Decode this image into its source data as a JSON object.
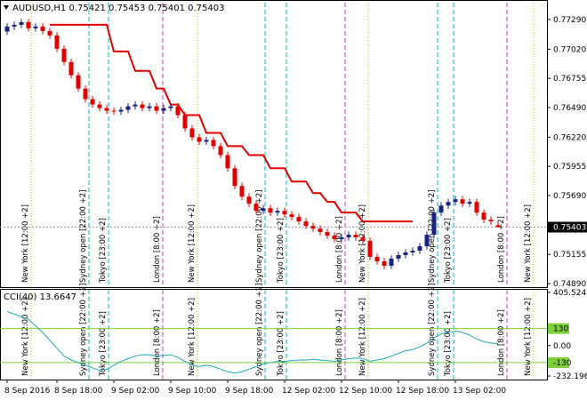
{
  "chart_data": {
    "type": "candlestick",
    "symbol": "AUDUSD,H1",
    "bull_color": "#1a237e",
    "bear_color": "#e00000",
    "ohlc": [
      [
        0.7718,
        0.77256,
        0.7715,
        0.77226
      ],
      [
        0.77226,
        0.77272,
        0.77196,
        0.77242
      ],
      [
        0.77242,
        0.77296,
        0.77212,
        0.77266
      ],
      [
        0.77266,
        0.77296,
        0.7718,
        0.7721
      ],
      [
        0.7721,
        0.77256,
        0.7718,
        0.77226
      ],
      [
        0.77226,
        0.77256,
        0.77155,
        0.77185
      ],
      [
        0.77185,
        0.77215,
        0.77115,
        0.77145
      ],
      [
        0.77145,
        0.77175,
        0.76994,
        0.77024
      ],
      [
        0.77024,
        0.77054,
        0.76874,
        0.76904
      ],
      [
        0.76904,
        0.76934,
        0.76753,
        0.76783
      ],
      [
        0.76783,
        0.76813,
        0.76632,
        0.76662
      ],
      [
        0.76662,
        0.76692,
        0.76536,
        0.76566
      ],
      [
        0.76566,
        0.76596,
        0.76487,
        0.76517
      ],
      [
        0.76517,
        0.76547,
        0.76455,
        0.76485
      ],
      [
        0.76485,
        0.76515,
        0.76431,
        0.76461
      ],
      [
        0.76461,
        0.76491,
        0.76423,
        0.76453
      ],
      [
        0.76453,
        0.76499,
        0.76423,
        0.76469
      ],
      [
        0.76469,
        0.76531,
        0.76439,
        0.76501
      ],
      [
        0.76501,
        0.76547,
        0.76471,
        0.76517
      ],
      [
        0.76517,
        0.76547,
        0.76455,
        0.76485
      ],
      [
        0.76485,
        0.76531,
        0.76455,
        0.76501
      ],
      [
        0.76501,
        0.76531,
        0.76431,
        0.76461
      ],
      [
        0.76461,
        0.76515,
        0.76431,
        0.76485
      ],
      [
        0.76485,
        0.76531,
        0.76455,
        0.76501
      ],
      [
        0.76501,
        0.76531,
        0.76391,
        0.76421
      ],
      [
        0.76421,
        0.76451,
        0.7627,
        0.763
      ],
      [
        0.763,
        0.7633,
        0.76189,
        0.76219
      ],
      [
        0.76219,
        0.76249,
        0.76149,
        0.76179
      ],
      [
        0.76179,
        0.76225,
        0.76149,
        0.76195
      ],
      [
        0.76195,
        0.76225,
        0.76109,
        0.76139
      ],
      [
        0.76139,
        0.76169,
        0.76028,
        0.76058
      ],
      [
        0.76058,
        0.76088,
        0.75908,
        0.75938
      ],
      [
        0.75938,
        0.75968,
        0.75747,
        0.75777
      ],
      [
        0.75777,
        0.75807,
        0.7565,
        0.7568
      ],
      [
        0.7568,
        0.7571,
        0.75586,
        0.75616
      ],
      [
        0.75616,
        0.75646,
        0.75521,
        0.75551
      ],
      [
        0.75551,
        0.75605,
        0.75521,
        0.75575
      ],
      [
        0.75575,
        0.75605,
        0.75505,
        0.75535
      ],
      [
        0.75535,
        0.75581,
        0.75505,
        0.75551
      ],
      [
        0.75551,
        0.75581,
        0.75489,
        0.75519
      ],
      [
        0.75519,
        0.75549,
        0.75465,
        0.75495
      ],
      [
        0.75495,
        0.75525,
        0.75425,
        0.75455
      ],
      [
        0.75455,
        0.75485,
        0.75384,
        0.75414
      ],
      [
        0.75414,
        0.75444,
        0.7536,
        0.7539
      ],
      [
        0.7539,
        0.7542,
        0.75328,
        0.75358
      ],
      [
        0.75358,
        0.75388,
        0.75296,
        0.75326
      ],
      [
        0.75326,
        0.75356,
        0.75264,
        0.75294
      ],
      [
        0.75294,
        0.7534,
        0.75264,
        0.7531
      ],
      [
        0.7531,
        0.75364,
        0.7528,
        0.75334
      ],
      [
        0.75334,
        0.75364,
        0.7528,
        0.7531
      ],
      [
        0.7531,
        0.7534,
        0.75248,
        0.75278
      ],
      [
        0.75278,
        0.75308,
        0.75103,
        0.75133
      ],
      [
        0.75133,
        0.75163,
        0.75062,
        0.75092
      ],
      [
        0.75092,
        0.75122,
        0.75022,
        0.75052
      ],
      [
        0.75052,
        0.75147,
        0.75022,
        0.75117
      ],
      [
        0.75117,
        0.75179,
        0.75087,
        0.75149
      ],
      [
        0.75149,
        0.75203,
        0.75119,
        0.75173
      ],
      [
        0.75173,
        0.75219,
        0.75143,
        0.75189
      ],
      [
        0.75189,
        0.75259,
        0.75159,
        0.75229
      ],
      [
        0.75229,
        0.75364,
        0.75199,
        0.75334
      ],
      [
        0.75334,
        0.75565,
        0.75304,
        0.75535
      ],
      [
        0.75535,
        0.75629,
        0.75505,
        0.75599
      ],
      [
        0.75599,
        0.75662,
        0.75569,
        0.75632
      ],
      [
        0.75632,
        0.75686,
        0.75602,
        0.75656
      ],
      [
        0.75656,
        0.75686,
        0.75586,
        0.75616
      ],
      [
        0.75616,
        0.75662,
        0.75586,
        0.75632
      ],
      [
        0.75632,
        0.75662,
        0.75505,
        0.75535
      ],
      [
        0.75535,
        0.75565,
        0.75441,
        0.75471
      ],
      [
        0.75471,
        0.75501,
        0.75425,
        0.75455
      ],
      [
        0.75421,
        0.75453,
        0.75401,
        0.75403
      ]
    ],
    "categories": [
      "8 Sep 2016",
      null,
      null,
      null,
      null,
      null,
      null,
      "8 Sep 18:00",
      null,
      null,
      null,
      null,
      null,
      null,
      null,
      "9 Sep 02:00",
      null,
      null,
      null,
      null,
      null,
      null,
      null,
      "9 Sep 10:00",
      null,
      null,
      null,
      null,
      null,
      null,
      null,
      "9 Sep 18:00",
      null,
      null,
      null,
      null,
      null,
      null,
      null,
      "12 Sep 02:00",
      null,
      null,
      null,
      null,
      null,
      null,
      null,
      "12 Sep 10:00",
      null,
      null,
      null,
      null,
      null,
      null,
      null,
      "12 Sep 18:00",
      null,
      null,
      null,
      null,
      null,
      null,
      null,
      "13 Sep 02:00",
      null,
      null,
      null,
      null,
      null,
      null
    ],
    "ylim": [
      0.74866,
      0.77443
    ],
    "yticks": [
      {
        "value": 0.7729,
        "label": "0.77290"
      },
      {
        "value": 0.7702,
        "label": "0.77020"
      },
      0.76755,
      {
        "value": 0.7649,
        "label": "0.76490"
      },
      {
        "value": 0.7622,
        "label": "0.76220"
      },
      0.75955,
      {
        "value": 0.7569,
        "label": "0.75690"
      },
      0.75155,
      {
        "value": 0.7489,
        "label": "0.74890"
      }
    ],
    "stop_line": {
      "color": "#e00000",
      "values": [
        null,
        null,
        null,
        null,
        null,
        null,
        0.77242,
        0.77242,
        0.77242,
        0.77242,
        0.77242,
        0.77242,
        0.77242,
        0.77242,
        0.77242,
        0.77,
        0.77,
        0.77,
        0.76823,
        0.76823,
        0.76823,
        0.76662,
        0.76662,
        0.76517,
        0.76517,
        0.76421,
        0.76421,
        0.76421,
        0.7626,
        0.7626,
        0.7626,
        0.76139,
        0.76139,
        0.76139,
        0.76058,
        0.76058,
        0.76058,
        0.75938,
        0.75938,
        0.75938,
        0.75817,
        0.75817,
        0.75817,
        0.75712,
        0.75712,
        0.75632,
        0.75632,
        0.75535,
        0.75535,
        0.75535,
        0.75455,
        0.75455,
        0.75455,
        0.75455,
        0.75455,
        0.75455,
        0.75455,
        0.75455,
        null,
        null,
        null,
        null,
        null,
        null,
        null,
        null,
        null,
        null,
        null,
        null
      ]
    },
    "session_labels": [
      "New York [12:00 +2]",
      "Sydney open [22:00 +2]",
      "Tokyo [23:00 +2]",
      "London [8:00 +2]"
    ],
    "indicator": {
      "type": "line",
      "name": "CCI(40)",
      "color": "#20a8b8",
      "level_color": "#7ed03a",
      "values": [
        260,
        240,
        220,
        200,
        150,
        100,
        40,
        -20,
        -80,
        -110,
        -130,
        -150,
        -170,
        -190,
        -180,
        -150,
        -120,
        -100,
        -80,
        -70,
        -70,
        -80,
        -75,
        -70,
        -90,
        -120,
        -150,
        -160,
        -150,
        -160,
        -180,
        -200,
        -210,
        -200,
        -180,
        -160,
        -140,
        -130,
        -120,
        -120,
        -115,
        -110,
        -110,
        -105,
        -110,
        -115,
        -120,
        -110,
        -100,
        -95,
        -100,
        -120,
        -110,
        -100,
        -80,
        -60,
        -40,
        -30,
        -10,
        20,
        60,
        90,
        100,
        110,
        100,
        80,
        50,
        30,
        20,
        13.6647
      ],
      "ylim": [
        -232.1964,
        405.5243
      ],
      "yticks": [
        405.5243,
        130,
        {
          "value": 0,
          "label": "0.00"
        },
        -130,
        -232.1964
      ],
      "levels": [
        130,
        -130
      ]
    }
  }
}
